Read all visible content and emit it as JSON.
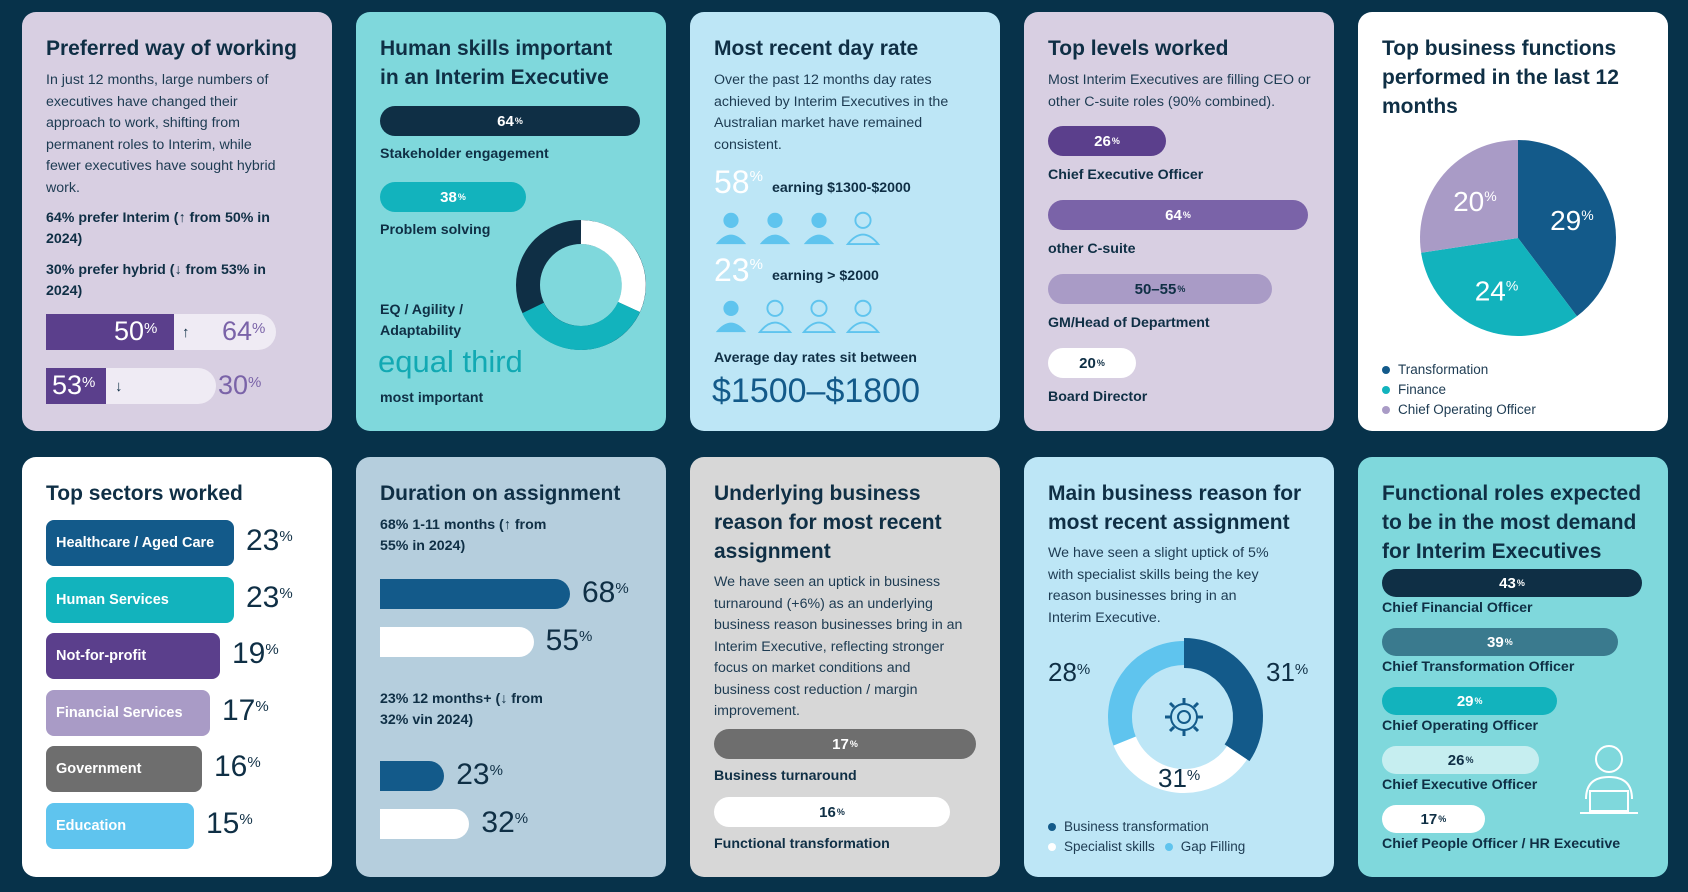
{
  "colors": {
    "background": "#07324a",
    "navy": "#0f2f45",
    "teal": "#12b3bd",
    "purple": "#5b3f8c",
    "lavender": "#a99bc6",
    "blue": "#135a8a",
    "lightblue": "#5fc4ee"
  },
  "cards": {
    "preferred": {
      "title": "Preferred way of working",
      "body": "In just 12 months, large numbers of executives have changed their approach to work, shifting from permanent roles to Interim, while fewer executives have sought hybrid work.",
      "stat1": "64% prefer Interim (↑ from 50% in 2024)",
      "stat2": "30% prefer hybrid (↓ from 53% in 2024)",
      "bar1_from": "50",
      "bar1_arrow": "↑",
      "bar1_to": "64",
      "bar2_from": "53",
      "bar2_arrow": "↓",
      "bar2_to": "30",
      "pct": "%"
    },
    "human_skills": {
      "title": "Human skills important in an Interim Executive",
      "bars": [
        {
          "value": "64",
          "label": "Stakeholder engagement"
        },
        {
          "value": "38",
          "label": "Problem solving"
        }
      ],
      "eq_label": "EQ / Agility / Adaptability",
      "eq_big": "equal third",
      "eq_sub": "most important",
      "pct": "%"
    },
    "day_rate": {
      "title": "Most recent day rate",
      "body": "Over the past 12 months day rates achieved by Interim Executives in the Australian market have remained consistent.",
      "stat1_value": "58",
      "stat1_label": "earning $1300-$2000",
      "stat2_value": "23",
      "stat2_label": "earning > $2000",
      "avg_label": "Average day rates sit between",
      "avg_value": "$1500–$1800",
      "pct": "%"
    },
    "levels": {
      "title": "Top levels worked",
      "body": "Most Interim Executives are filling CEO or other C-suite roles (90% combined).",
      "items": [
        {
          "value": "26",
          "label": "Chief Executive Officer"
        },
        {
          "value": "64",
          "label": "other C-suite"
        },
        {
          "value": "50–55",
          "label": "GM/Head of Department"
        },
        {
          "value": "20",
          "label": "Board Director"
        }
      ],
      "pct": "%"
    },
    "functions": {
      "title": "Top business functions performed in the last 12 months",
      "legend": [
        "Transformation",
        "Finance",
        "Chief Operating Officer"
      ],
      "pct": "%"
    },
    "sectors": {
      "title": "Top sectors worked",
      "pct": "%"
    },
    "duration": {
      "title": "Duration on assignment",
      "group1": "68% 1-11 months (↑ from 55% in 2024)",
      "group2": "23% 12 months+ (↓ from 32% vin 2024)",
      "pct": "%"
    },
    "underlying": {
      "title": "Underlying business reason for most recent assignment",
      "body": "We have seen an uptick in business turnaround (+6%) as an underlying business reason businesses bring in an Interim Executive, reflecting stronger focus on market conditions and business cost reduction / margin improvement.",
      "items": [
        {
          "value": "17",
          "label": "Business turnaround"
        },
        {
          "value": "16",
          "label": "Functional transformation"
        }
      ],
      "pct": "%"
    },
    "main_reason": {
      "title": "Main business reason for most recent assignment",
      "body": "We have seen a slight uptick of 5% with specialist skills being the key reason businesses bring in an Interim Executive.",
      "legend": [
        "Business transformation",
        "Specialist skills",
        "Gap Filling"
      ],
      "pct": "%"
    },
    "demand": {
      "title": "Functional roles expected to be in the most demand for Interim Executives",
      "items": [
        {
          "value": "43",
          "label": "Chief Financial Officer"
        },
        {
          "value": "39",
          "label": "Chief Transformation Officer"
        },
        {
          "value": "29",
          "label": "Chief Operating Officer"
        },
        {
          "value": "26",
          "label": "Chief Executive Officer"
        },
        {
          "value": "17",
          "label": "Chief People Officer / HR Executive"
        }
      ],
      "pct": "%"
    }
  },
  "chart_data": [
    {
      "type": "bar",
      "title": "Preferred way of working",
      "categories": [
        "Interim",
        "Hybrid"
      ],
      "series": [
        {
          "name": "2024",
          "values": [
            50,
            53
          ]
        },
        {
          "name": "2025",
          "values": [
            64,
            30
          ]
        }
      ]
    },
    {
      "type": "bar",
      "title": "Human skills important in an Interim Executive",
      "categories": [
        "Stakeholder engagement",
        "Problem solving"
      ],
      "values": [
        64,
        38
      ]
    },
    {
      "type": "bar",
      "title": "Top levels worked",
      "categories": [
        "Chief Executive Officer",
        "other C-suite",
        "GM/Head of Department",
        "Board Director"
      ],
      "values": [
        26,
        64,
        52.5,
        20
      ]
    },
    {
      "type": "pie",
      "title": "Top business functions performed in the last 12 months",
      "categories": [
        "Transformation",
        "Finance",
        "Chief Operating Officer"
      ],
      "values": [
        29,
        24,
        20
      ]
    },
    {
      "type": "bar",
      "title": "Top sectors worked",
      "categories": [
        "Healthcare / Aged Care",
        "Human Services",
        "Not-for-profit",
        "Financial Services",
        "Government",
        "Education"
      ],
      "values": [
        23,
        23,
        19,
        17,
        16,
        15
      ]
    },
    {
      "type": "bar",
      "title": "Duration on assignment",
      "categories": [
        "1-11 months",
        "12 months+"
      ],
      "series": [
        {
          "name": "2025",
          "values": [
            68,
            23
          ]
        },
        {
          "name": "2024",
          "values": [
            55,
            32
          ]
        }
      ]
    },
    {
      "type": "bar",
      "title": "Underlying business reason for most recent assignment",
      "categories": [
        "Business turnaround",
        "Functional transformation"
      ],
      "values": [
        17,
        16
      ]
    },
    {
      "type": "pie",
      "title": "Main business reason for most recent assignment",
      "categories": [
        "Business transformation",
        "Specialist skills",
        "Gap Filling"
      ],
      "values": [
        31,
        31,
        28
      ]
    },
    {
      "type": "bar",
      "title": "Functional roles expected to be in the most demand for Interim Executives",
      "categories": [
        "Chief Financial Officer",
        "Chief Transformation Officer",
        "Chief Operating Officer",
        "Chief Executive Officer",
        "Chief People Officer / HR Executive"
      ],
      "values": [
        43,
        39,
        29,
        26,
        17
      ]
    }
  ]
}
